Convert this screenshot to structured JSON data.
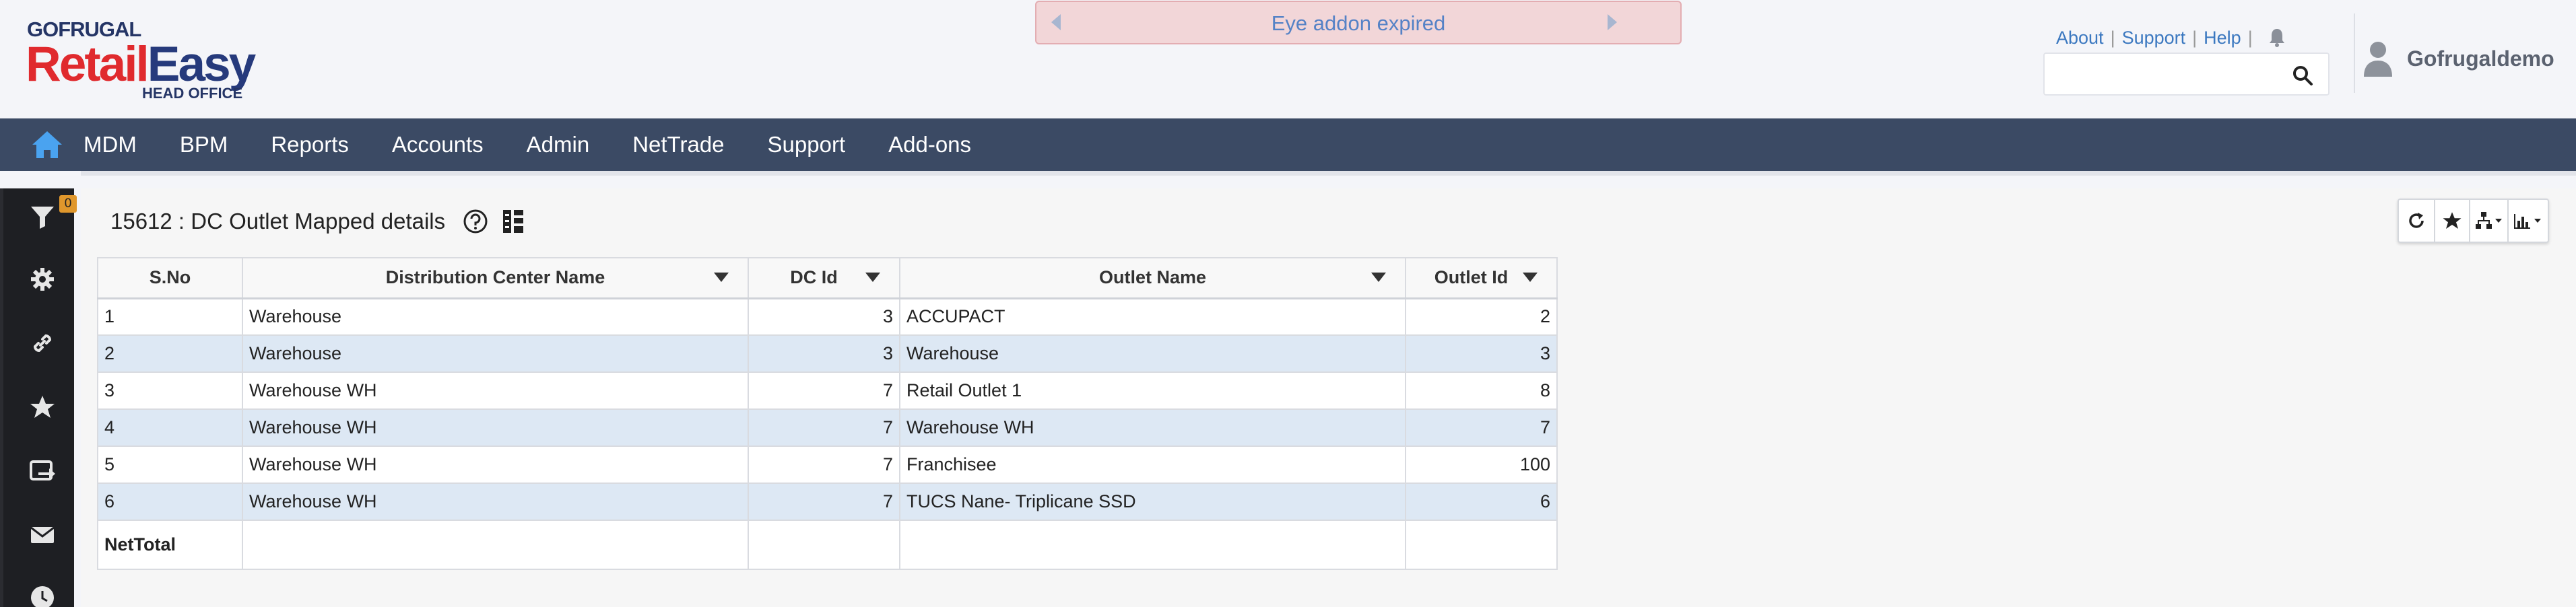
{
  "logo": {
    "small": "GOFRUGAL",
    "retail": "Retail",
    "easy": "Easy",
    "sub": "HEAD OFFICE"
  },
  "banner": {
    "text": "Eye addon expired"
  },
  "top_links": [
    "About",
    "Support",
    "Help"
  ],
  "search": {
    "value": "",
    "placeholder": ""
  },
  "user": {
    "name": "Gofrugaldemo"
  },
  "nav": {
    "items": [
      "MDM",
      "BPM",
      "Reports",
      "Accounts",
      "Admin",
      "NetTrade",
      "Support",
      "Add-ons"
    ]
  },
  "sidebar": {
    "filter_count": "0"
  },
  "report": {
    "title": "15612 : DC Outlet Mapped details"
  },
  "table": {
    "headers": [
      "S.No",
      "Distribution Center Name",
      "DC Id",
      "Outlet Name",
      "Outlet Id"
    ],
    "rows": [
      [
        "1",
        "Warehouse",
        "3",
        "ACCUPACT",
        "2"
      ],
      [
        "2",
        "Warehouse",
        "3",
        "Warehouse",
        "3"
      ],
      [
        "3",
        "Warehouse WH",
        "7",
        "Retail Outlet 1",
        "8"
      ],
      [
        "4",
        "Warehouse WH",
        "7",
        "Warehouse WH",
        "7"
      ],
      [
        "5",
        "Warehouse WH",
        "7",
        "Franchisee",
        "100"
      ],
      [
        "6",
        "Warehouse WH",
        "7",
        "TUCS Nane- Triplicane SSD",
        "6"
      ]
    ],
    "total_label": "NetTotal"
  },
  "colors": {
    "nav_bg": "#3b4a64",
    "sidebar_bg": "#1e1f23",
    "banner_bg": "#f2d6d8",
    "row_alt": "#dde8f4",
    "brand_red": "#e02a2e",
    "brand_blue": "#263a7c"
  }
}
